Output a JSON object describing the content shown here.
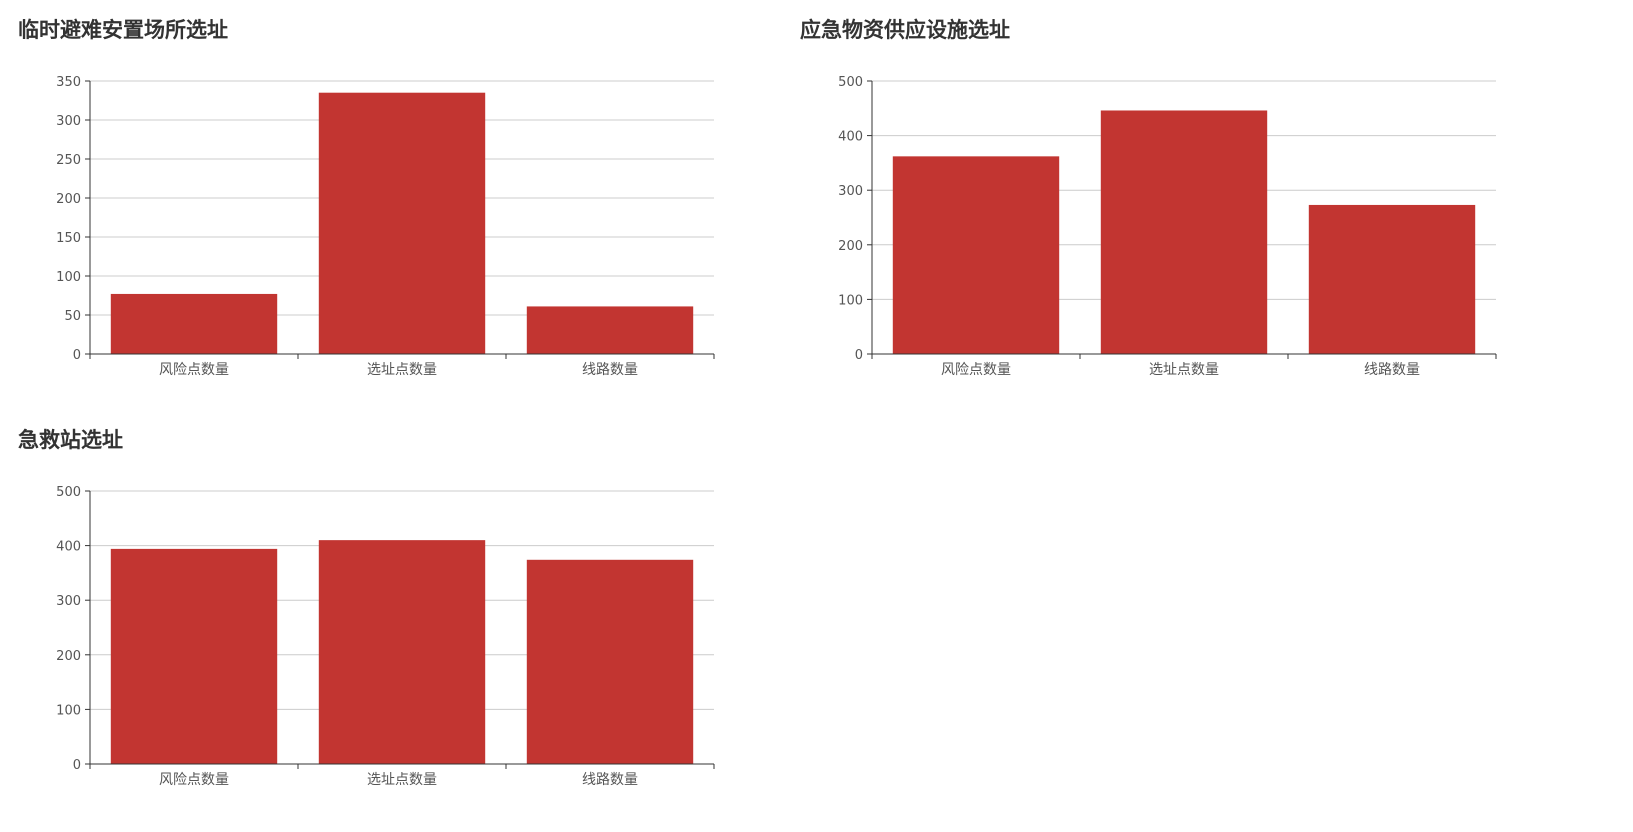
{
  "chart_data": [
    {
      "type": "bar",
      "title": "临时避难安置场所选址",
      "categories": [
        "风险点数量",
        "选址点数量",
        "线路数量"
      ],
      "values": [
        77,
        335,
        61
      ],
      "ylim": [
        0,
        350
      ],
      "yticks": [
        0,
        50,
        100,
        150,
        200,
        250,
        300,
        350
      ],
      "grid": true,
      "color": "#c23531"
    },
    {
      "type": "bar",
      "title": "应急物资供应设施选址",
      "categories": [
        "风险点数量",
        "选址点数量",
        "线路数量"
      ],
      "values": [
        362,
        446,
        273
      ],
      "ylim": [
        0,
        500
      ],
      "yticks": [
        0,
        100,
        200,
        300,
        400,
        500
      ],
      "grid": true,
      "color": "#c23531"
    },
    {
      "type": "bar",
      "title": "急救站选址",
      "categories": [
        "风险点数量",
        "选址点数量",
        "线路数量"
      ],
      "values": [
        394,
        410,
        374
      ],
      "ylim": [
        0,
        500
      ],
      "yticks": [
        0,
        100,
        200,
        300,
        400,
        500
      ],
      "grid": true,
      "color": "#c23531"
    }
  ]
}
